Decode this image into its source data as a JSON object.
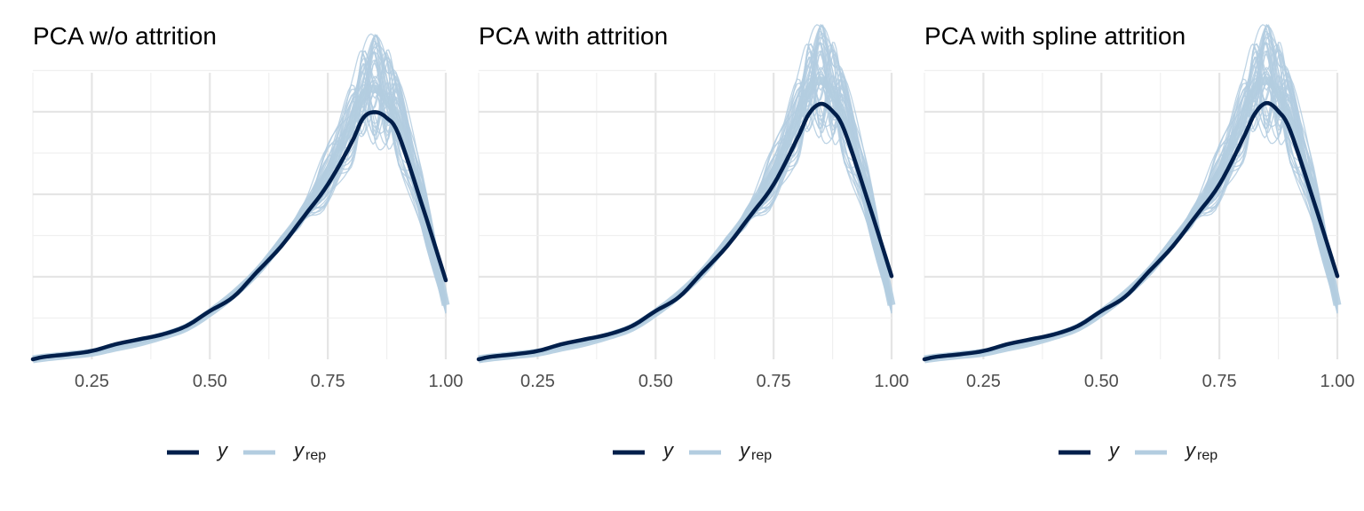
{
  "chart_data": [
    {
      "type": "line",
      "title": "PCA w/o attrition",
      "xlabel": "",
      "ylabel": "",
      "xlim": [
        0.125,
        1.0
      ],
      "ylim": [
        0,
        3.55
      ],
      "x_ticks": [
        "0.25",
        "0.50",
        "0.75",
        "1.00"
      ],
      "x_tick_values": [
        0.25,
        0.5,
        0.75,
        1.0
      ],
      "grid": true,
      "legend": "bottom",
      "series": [
        {
          "name": "y",
          "x": [
            0.125,
            0.15,
            0.2,
            0.25,
            0.3,
            0.35,
            0.4,
            0.45,
            0.5,
            0.55,
            0.6,
            0.65,
            0.7,
            0.75,
            0.8,
            0.825,
            0.85,
            0.875,
            0.9,
            0.95,
            1.0
          ],
          "y": [
            0.0,
            0.03,
            0.06,
            0.1,
            0.18,
            0.24,
            0.3,
            0.4,
            0.58,
            0.75,
            1.05,
            1.35,
            1.72,
            2.1,
            2.6,
            2.9,
            2.97,
            2.9,
            2.7,
            1.85,
            0.95
          ]
        },
        {
          "name": "yrep",
          "x": [
            0.125,
            0.15,
            0.2,
            0.25,
            0.3,
            0.35,
            0.4,
            0.45,
            0.5,
            0.55,
            0.6,
            0.65,
            0.7,
            0.75,
            0.8,
            0.825,
            0.85,
            0.875,
            0.9,
            0.95,
            1.0
          ],
          "y": [
            0.0,
            0.02,
            0.05,
            0.08,
            0.14,
            0.2,
            0.28,
            0.38,
            0.56,
            0.78,
            1.05,
            1.4,
            1.78,
            2.25,
            2.82,
            3.18,
            3.25,
            3.12,
            2.82,
            1.9,
            0.65
          ]
        }
      ]
    },
    {
      "type": "line",
      "title": "PCA with attrition",
      "xlabel": "",
      "ylabel": "",
      "xlim": [
        0.125,
        1.0
      ],
      "ylim": [
        0,
        3.55
      ],
      "x_ticks": [
        "0.25",
        "0.50",
        "0.75",
        "1.00"
      ],
      "x_tick_values": [
        0.25,
        0.5,
        0.75,
        1.0
      ],
      "grid": true,
      "legend": "bottom",
      "series": [
        {
          "name": "y",
          "x": [
            0.125,
            0.15,
            0.2,
            0.25,
            0.3,
            0.35,
            0.4,
            0.45,
            0.5,
            0.55,
            0.6,
            0.65,
            0.7,
            0.75,
            0.8,
            0.825,
            0.85,
            0.875,
            0.9,
            0.95,
            1.0
          ],
          "y": [
            0.0,
            0.03,
            0.06,
            0.1,
            0.18,
            0.24,
            0.3,
            0.4,
            0.58,
            0.75,
            1.05,
            1.35,
            1.72,
            2.1,
            2.65,
            2.95,
            3.07,
            2.98,
            2.75,
            1.9,
            1.0
          ]
        },
        {
          "name": "yrep",
          "x": [
            0.125,
            0.15,
            0.2,
            0.25,
            0.3,
            0.35,
            0.4,
            0.45,
            0.5,
            0.55,
            0.6,
            0.65,
            0.7,
            0.75,
            0.8,
            0.825,
            0.85,
            0.875,
            0.9,
            0.95,
            1.0
          ],
          "y": [
            0.0,
            0.02,
            0.05,
            0.08,
            0.14,
            0.2,
            0.28,
            0.38,
            0.56,
            0.78,
            1.05,
            1.4,
            1.78,
            2.25,
            2.88,
            3.25,
            3.35,
            3.2,
            2.85,
            1.95,
            0.65
          ]
        }
      ]
    },
    {
      "type": "line",
      "title": "PCA with spline attrition",
      "xlabel": "",
      "ylabel": "",
      "xlim": [
        0.125,
        1.0
      ],
      "ylim": [
        0,
        3.55
      ],
      "x_ticks": [
        "0.25",
        "0.50",
        "0.75",
        "1.00"
      ],
      "x_tick_values": [
        0.25,
        0.5,
        0.75,
        1.0
      ],
      "grid": true,
      "legend": "bottom",
      "series": [
        {
          "name": "y",
          "x": [
            0.125,
            0.15,
            0.2,
            0.25,
            0.3,
            0.35,
            0.4,
            0.45,
            0.5,
            0.55,
            0.6,
            0.65,
            0.7,
            0.75,
            0.8,
            0.825,
            0.85,
            0.875,
            0.9,
            0.95,
            1.0
          ],
          "y": [
            0.0,
            0.03,
            0.06,
            0.1,
            0.18,
            0.24,
            0.3,
            0.4,
            0.58,
            0.75,
            1.05,
            1.35,
            1.72,
            2.1,
            2.65,
            2.95,
            3.08,
            2.98,
            2.75,
            1.9,
            1.0
          ]
        },
        {
          "name": "yrep",
          "x": [
            0.125,
            0.15,
            0.2,
            0.25,
            0.3,
            0.35,
            0.4,
            0.45,
            0.5,
            0.55,
            0.6,
            0.65,
            0.7,
            0.75,
            0.8,
            0.825,
            0.85,
            0.875,
            0.9,
            0.95,
            1.0
          ],
          "y": [
            0.0,
            0.02,
            0.05,
            0.08,
            0.14,
            0.2,
            0.28,
            0.38,
            0.56,
            0.78,
            1.05,
            1.4,
            1.78,
            2.25,
            2.88,
            3.25,
            3.35,
            3.2,
            2.85,
            1.95,
            0.65
          ]
        }
      ]
    }
  ],
  "legend": {
    "items": [
      {
        "label": "y",
        "subscript": "",
        "color": "#011f4b"
      },
      {
        "label": "y",
        "subscript": "rep",
        "color": "#b3cde0"
      }
    ]
  },
  "colors": {
    "y": "#011f4b",
    "yrep": "#b3cde0",
    "grid": "#ebebeb"
  }
}
